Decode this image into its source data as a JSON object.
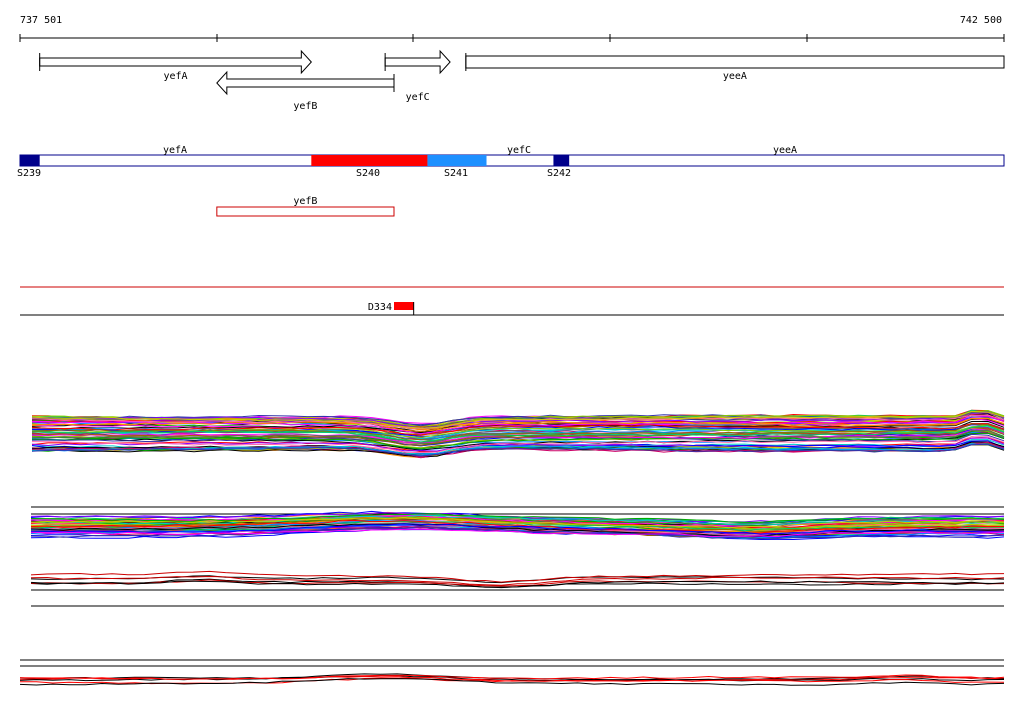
{
  "ruler": {
    "start_label": "737 501",
    "end_label": "742 500",
    "start": 737501,
    "end": 742500
  },
  "genes": [
    {
      "name": "yefA",
      "start": 737601,
      "end": 738981,
      "strand": "+"
    },
    {
      "name": "yefB",
      "start": 738501,
      "end": 739401,
      "strand": "-"
    },
    {
      "name": "yefC",
      "start": 739356,
      "end": 739686,
      "strand": "+"
    },
    {
      "name": "yeeA",
      "start": 739766,
      "end": 742500,
      "strand": "+"
    }
  ],
  "segments": [
    {
      "id": "S239",
      "start": 737501,
      "end": 737601,
      "color": "#00008b"
    },
    {
      "id": "S240",
      "start": 738981,
      "end": 739571,
      "color": "#ff0000"
    },
    {
      "id": "S241",
      "start": 739571,
      "end": 739871,
      "color": "#1e90ff"
    },
    {
      "id": "S242",
      "start": 740211,
      "end": 740291,
      "color": "#00008b"
    }
  ],
  "segment_track_genes": [
    {
      "name": "yefA"
    },
    {
      "name": "yefC"
    },
    {
      "name": "yeeA"
    }
  ],
  "antisense_track": {
    "name": "yefB",
    "start": 738501,
    "end": 739401,
    "color": "#cc0000"
  },
  "features": [
    {
      "id": "D334",
      "start": 739401,
      "end": 739501,
      "color": "#ff0000"
    }
  ],
  "colors": {
    "track_outline": "#00008b",
    "divider_red": "#cc0000",
    "profile_palette": [
      "#ff0000",
      "#00aa00",
      "#0000ff",
      "#ff00ff",
      "#00cccc",
      "#ff8800",
      "#8800ff",
      "#88cc00",
      "#cc0066",
      "#0088ff",
      "#996600",
      "#00cc66",
      "#666666",
      "#ff66aa",
      "#3333aa",
      "#cccc00"
    ]
  }
}
